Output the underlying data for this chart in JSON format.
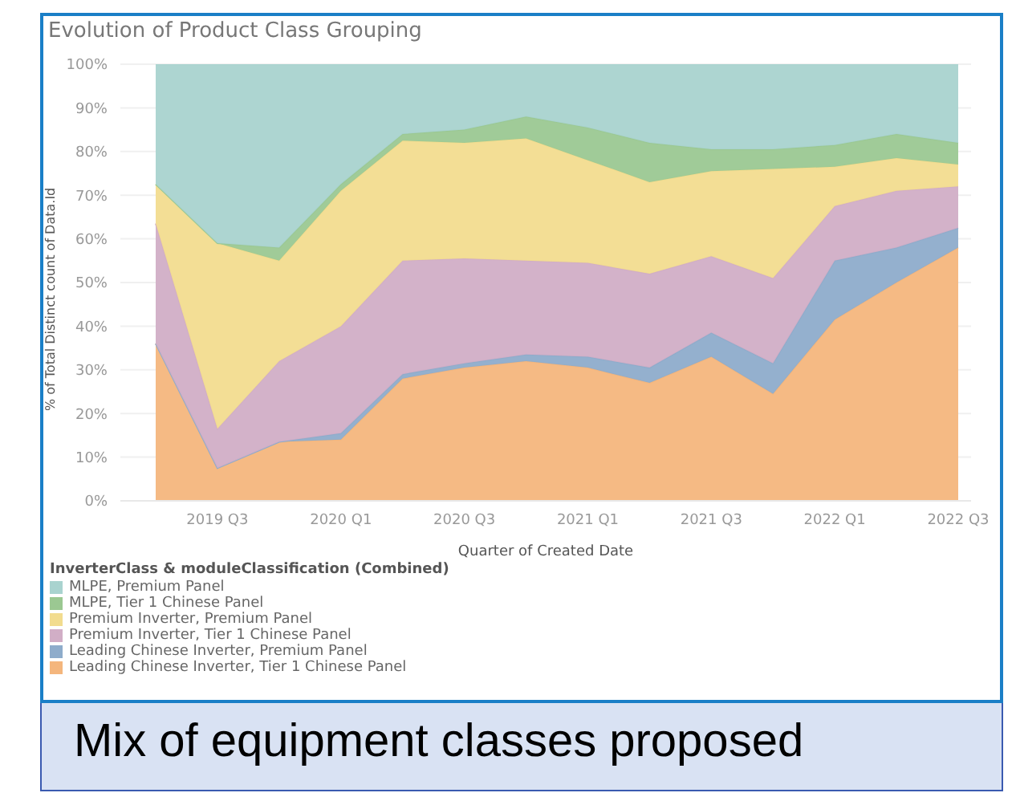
{
  "chart_data": {
    "type": "area",
    "title": "Evolution of Product Class Grouping",
    "xlabel": "Quarter of Created Date",
    "ylabel": "% of Total Distinct count of Data.Id",
    "legend_title": "InverterClass & moduleClassification (Combined)",
    "annotations": [
      "Mix of equipment classes proposed"
    ],
    "categories": [
      null,
      "2019 Q3",
      null,
      "2020 Q1",
      null,
      "2020 Q3",
      null,
      "2021 Q1",
      null,
      "2021 Q3",
      null,
      "2022 Q1",
      null,
      "2022 Q3"
    ],
    "stacked": true,
    "series": [
      {
        "name": "Leading Chinese Inverter, Tier 1 Chinese Panel",
        "color": "#f4b67d",
        "values": [
          36,
          7.5,
          13.5,
          14,
          28,
          30.5,
          32,
          30.5,
          27,
          33,
          24.5,
          41.5,
          50,
          58
        ]
      },
      {
        "name": "Leading Chinese Inverter, Premium Panel",
        "color": "#8eaccb",
        "values": [
          0,
          0,
          0,
          1.5,
          1,
          1,
          1.5,
          2.5,
          3.5,
          5.5,
          7,
          13.5,
          8,
          4.5
        ]
      },
      {
        "name": "Premium Inverter, Tier 1 Chinese Panel",
        "color": "#d1aec6",
        "values": [
          27.5,
          9,
          18.5,
          24.5,
          26,
          24,
          21.5,
          21.5,
          21.5,
          17.5,
          19.5,
          12.5,
          13,
          9.5
        ]
      },
      {
        "name": "Premium Inverter, Premium Panel",
        "color": "#f2dc8f",
        "values": [
          9,
          42.5,
          23,
          31,
          27.5,
          26.5,
          28,
          23.5,
          21,
          19.5,
          25,
          9,
          7.5,
          5
        ]
      },
      {
        "name": "MLPE, Tier 1 Chinese Panel",
        "color": "#9bc892",
        "values": [
          0,
          0,
          3,
          1.5,
          1.5,
          3,
          5,
          7.5,
          9,
          5,
          4.5,
          5,
          5.5,
          5
        ]
      },
      {
        "name": "MLPE, Premium Panel",
        "color": "#a9d3cf",
        "values": [
          27.5,
          41,
          42,
          27.5,
          16,
          15,
          12,
          14.5,
          18,
          19.5,
          19.5,
          18.5,
          16,
          18
        ]
      }
    ],
    "ylim": [
      0,
      100
    ],
    "yticks": [
      {
        "value": 0,
        "label": "0%"
      },
      {
        "value": 10,
        "label": "10%"
      },
      {
        "value": 20,
        "label": "20%"
      },
      {
        "value": 30,
        "label": "30%"
      },
      {
        "value": 40,
        "label": "40%"
      },
      {
        "value": 50,
        "label": "50%"
      },
      {
        "value": 60,
        "label": "60%"
      },
      {
        "value": 70,
        "label": "70%"
      },
      {
        "value": 80,
        "label": "80%"
      },
      {
        "value": 90,
        "label": "90%"
      },
      {
        "value": 100,
        "label": "100%"
      }
    ],
    "grid": "y",
    "legend": "bottom left"
  }
}
